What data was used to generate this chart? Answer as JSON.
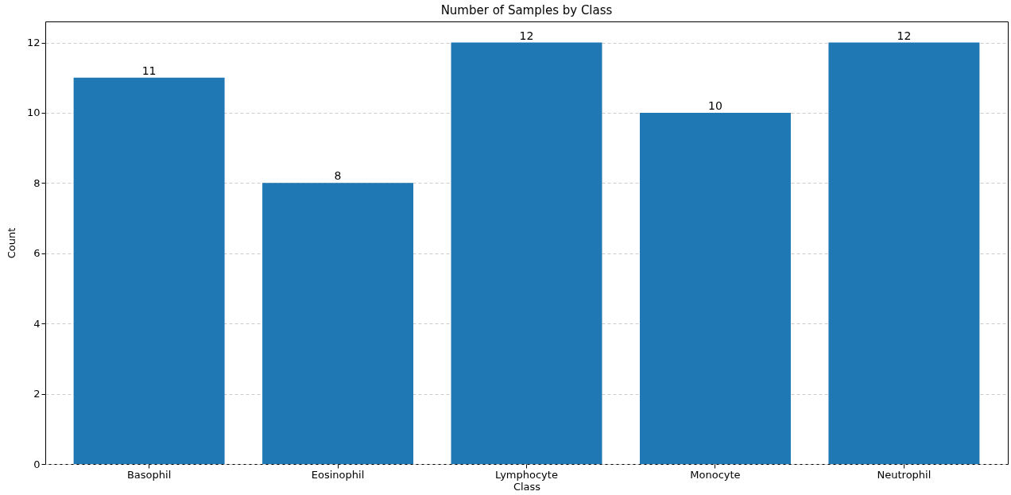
{
  "chart_data": {
    "type": "bar",
    "title": "Number of Samples by Class",
    "xlabel": "Class",
    "ylabel": "Count",
    "categories": [
      "Basophil",
      "Eosinophil",
      "Lymphocyte",
      "Monocyte",
      "Neutrophil"
    ],
    "values": [
      11,
      8,
      12,
      10,
      12
    ],
    "color": "#1f77b4",
    "ylim": [
      0,
      12.6
    ],
    "yticks": [
      0,
      2,
      4,
      6,
      8,
      10,
      12
    ],
    "grid": "y",
    "data_labels": true
  }
}
